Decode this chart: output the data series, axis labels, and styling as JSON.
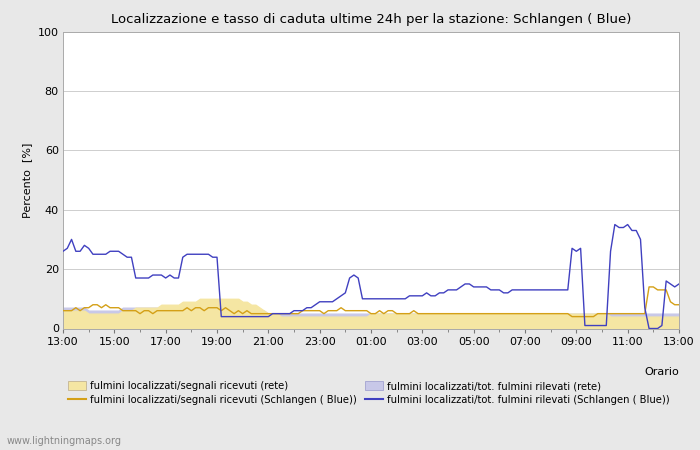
{
  "title": "Localizzazione e tasso di caduta ultime 24h per la stazione: Schlangen ( Blue)",
  "ylabel": "Percento  [%]",
  "xlabel": "Orario",
  "watermark": "www.lightningmaps.org",
  "ylim": [
    0,
    100
  ],
  "yticks": [
    0,
    20,
    40,
    60,
    80,
    100
  ],
  "x_labels": [
    "13:00",
    "15:00",
    "17:00",
    "19:00",
    "21:00",
    "23:00",
    "01:00",
    "03:00",
    "05:00",
    "07:00",
    "09:00",
    "11:00",
    "13:00"
  ],
  "bg_color": "#e8e8e8",
  "plot_bg_color": "#ffffff",
  "color_fill_rete_segnali": "#f5e6a3",
  "color_fill_rete_fulmini": "#c8c8e8",
  "color_line_schlangen_segnali": "#d4a017",
  "color_line_schlangen_fulmini": "#4040c0",
  "legend_labels": [
    "fulmini localizzati/segnali ricevuti (rete)",
    "fulmini localizzati/segnali ricevuti (Schlangen ( Blue))",
    "fulmini localizzati/tot. fulmini rilevati (rete)",
    "fulmini localizzati/tot. fulmini rilevati (Schlangen ( Blue))"
  ],
  "n_points": 145,
  "rete_segnali": [
    6,
    6,
    6,
    6,
    6,
    6,
    5,
    5,
    5,
    5,
    5,
    5,
    5,
    5,
    6,
    6,
    6,
    7,
    7,
    7,
    7,
    7,
    7,
    8,
    8,
    8,
    8,
    8,
    9,
    9,
    9,
    9,
    10,
    10,
    10,
    10,
    10,
    10,
    10,
    10,
    10,
    10,
    9,
    9,
    8,
    8,
    7,
    6,
    5,
    5,
    5,
    4,
    4,
    4,
    4,
    4,
    4,
    4,
    4,
    4,
    4,
    4,
    4,
    4,
    4,
    4,
    4,
    4,
    4,
    4,
    4,
    4,
    5,
    5,
    5,
    5,
    5,
    5,
    5,
    5,
    5,
    5,
    5,
    5,
    5,
    5,
    5,
    5,
    5,
    5,
    5,
    5,
    5,
    5,
    5,
    5,
    5,
    5,
    5,
    5,
    5,
    5,
    5,
    5,
    5,
    5,
    5,
    5,
    5,
    5,
    5,
    5,
    5,
    5,
    5,
    5,
    5,
    5,
    5,
    5,
    5,
    5,
    5,
    5,
    5,
    5,
    5,
    5,
    4,
    4,
    4,
    4,
    4,
    4,
    4,
    4,
    4,
    4,
    4,
    4,
    4,
    4,
    4,
    4,
    4
  ],
  "rete_fulmini": [
    7,
    7,
    7,
    7,
    7,
    7,
    6,
    6,
    6,
    6,
    6,
    6,
    6,
    6,
    7,
    7,
    7,
    7,
    7,
    7,
    7,
    7,
    7,
    7,
    7,
    7,
    7,
    7,
    7,
    7,
    7,
    7,
    7,
    7,
    7,
    7,
    7,
    7,
    7,
    7,
    7,
    7,
    7,
    7,
    7,
    7,
    6,
    6,
    5,
    5,
    5,
    5,
    5,
    5,
    5,
    5,
    5,
    5,
    5,
    5,
    5,
    5,
    5,
    5,
    5,
    5,
    5,
    5,
    5,
    5,
    5,
    5,
    5,
    5,
    5,
    5,
    5,
    5,
    5,
    5,
    5,
    5,
    5,
    5,
    5,
    5,
    5,
    5,
    5,
    5,
    5,
    5,
    5,
    5,
    5,
    5,
    5,
    5,
    5,
    5,
    5,
    5,
    5,
    5,
    5,
    5,
    5,
    5,
    5,
    5,
    5,
    5,
    5,
    5,
    5,
    5,
    5,
    5,
    5,
    5,
    5,
    5,
    5,
    5,
    5,
    5,
    5,
    5,
    5,
    5,
    5,
    5,
    5,
    5,
    5,
    5,
    5,
    5,
    5,
    5,
    5,
    5,
    5,
    5,
    5
  ],
  "schlangen_segnali": [
    6,
    6,
    6,
    7,
    6,
    7,
    7,
    8,
    8,
    7,
    8,
    7,
    7,
    7,
    6,
    6,
    6,
    6,
    5,
    6,
    6,
    5,
    6,
    6,
    6,
    6,
    6,
    6,
    6,
    7,
    6,
    7,
    7,
    6,
    7,
    7,
    7,
    6,
    7,
    6,
    5,
    6,
    5,
    6,
    5,
    5,
    5,
    5,
    5,
    5,
    5,
    5,
    5,
    5,
    5,
    5,
    6,
    6,
    6,
    6,
    6,
    5,
    6,
    6,
    6,
    7,
    6,
    6,
    6,
    6,
    6,
    6,
    5,
    5,
    6,
    5,
    6,
    6,
    5,
    5,
    5,
    5,
    6,
    5,
    5,
    5,
    5,
    5,
    5,
    5,
    5,
    5,
    5,
    5,
    5,
    5,
    5,
    5,
    5,
    5,
    5,
    5,
    5,
    5,
    5,
    5,
    5,
    5,
    5,
    5,
    5,
    5,
    5,
    5,
    5,
    5,
    5,
    5,
    5,
    4,
    4,
    4,
    4,
    4,
    4,
    5,
    5,
    5,
    5,
    5,
    5,
    5,
    5,
    5,
    5,
    5,
    5,
    14,
    14,
    13,
    13,
    13,
    9,
    8,
    8
  ],
  "schlangen_fulmini": [
    26,
    27,
    30,
    26,
    26,
    28,
    27,
    25,
    25,
    25,
    25,
    26,
    26,
    26,
    25,
    24,
    24,
    17,
    17,
    17,
    17,
    18,
    18,
    18,
    17,
    18,
    17,
    17,
    24,
    25,
    25,
    25,
    25,
    25,
    25,
    24,
    24,
    4,
    4,
    4,
    4,
    4,
    4,
    4,
    4,
    4,
    4,
    4,
    4,
    5,
    5,
    5,
    5,
    5,
    6,
    6,
    6,
    7,
    7,
    8,
    9,
    9,
    9,
    9,
    10,
    11,
    12,
    17,
    18,
    17,
    10,
    10,
    10,
    10,
    10,
    10,
    10,
    10,
    10,
    10,
    10,
    11,
    11,
    11,
    11,
    12,
    11,
    11,
    12,
    12,
    13,
    13,
    13,
    14,
    15,
    15,
    14,
    14,
    14,
    14,
    13,
    13,
    13,
    12,
    12,
    13,
    13,
    13,
    13,
    13,
    13,
    13,
    13,
    13,
    13,
    13,
    13,
    13,
    13,
    27,
    26,
    27,
    1,
    1,
    1,
    1,
    1,
    1,
    26,
    35,
    34,
    34,
    35,
    33,
    33,
    30,
    7,
    0,
    0,
    0,
    1,
    16,
    15,
    14,
    15
  ]
}
